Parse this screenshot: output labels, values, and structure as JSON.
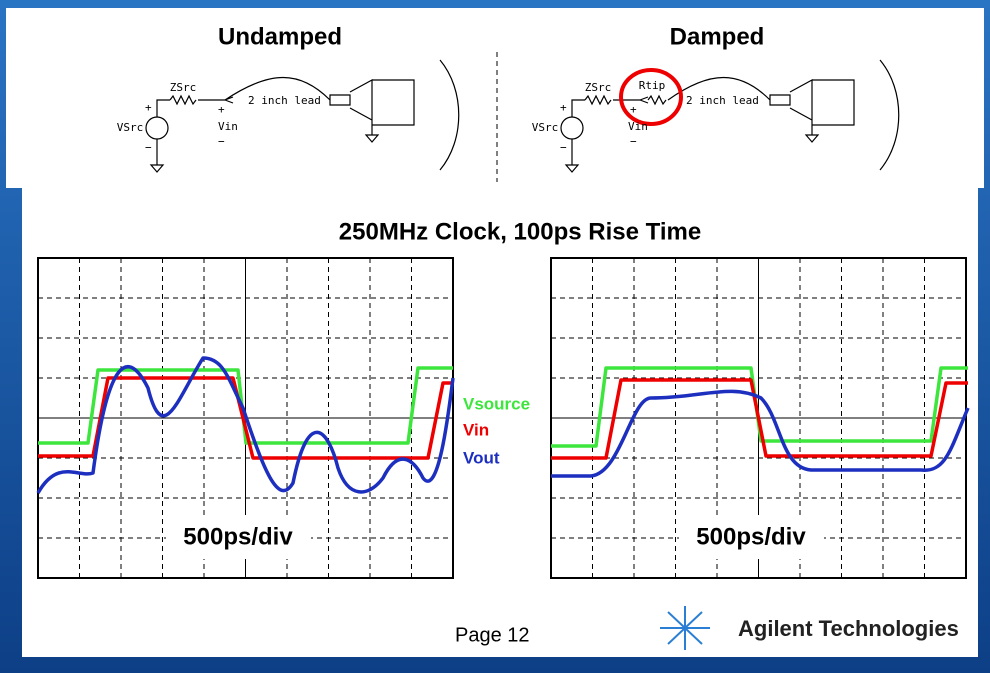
{
  "left_panel": {
    "title": "Undamped",
    "circuit": {
      "source": "VSrc",
      "resistor": "ZSrc",
      "node": "Vin",
      "lead": "2 inch lead",
      "plus": "+",
      "minus": "−",
      "plus2": "+",
      "minus2": "−"
    }
  },
  "right_panel": {
    "title": "Damped",
    "circuit": {
      "source": "VSrc",
      "resistor": "ZSrc",
      "tip": "Rtip",
      "node": "Vin",
      "lead": "2 inch lead",
      "plus": "+",
      "minus": "−",
      "plus2": "+",
      "minus2": "−"
    }
  },
  "scope_title": "250MHz Clock, 100ps Rise Time",
  "legend": [
    "Vsource",
    "Vin",
    "Vout"
  ],
  "scopes": [
    {
      "timebase": "500ps/div"
    },
    {
      "timebase": "500ps/div"
    }
  ],
  "footer": {
    "page": "Page 12",
    "company": "Agilent Technologies"
  }
}
